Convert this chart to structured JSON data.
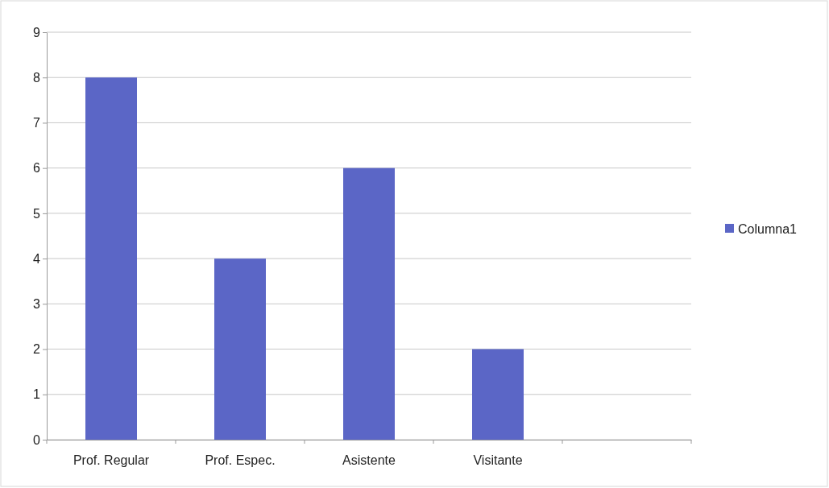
{
  "chart_data": {
    "type": "bar",
    "categories": [
      "Prof. Regular",
      "Prof. Espec.",
      "Asistente",
      "Visitante",
      null
    ],
    "series": [
      {
        "name": "Columna1",
        "color": "#5b66c6",
        "values": [
          8,
          4,
          6,
          2,
          null
        ]
      }
    ],
    "ylim": [
      0,
      9
    ],
    "yticks": [
      0,
      1,
      2,
      3,
      4,
      5,
      6,
      7,
      8,
      9
    ],
    "grid": "y",
    "legend": "right"
  }
}
